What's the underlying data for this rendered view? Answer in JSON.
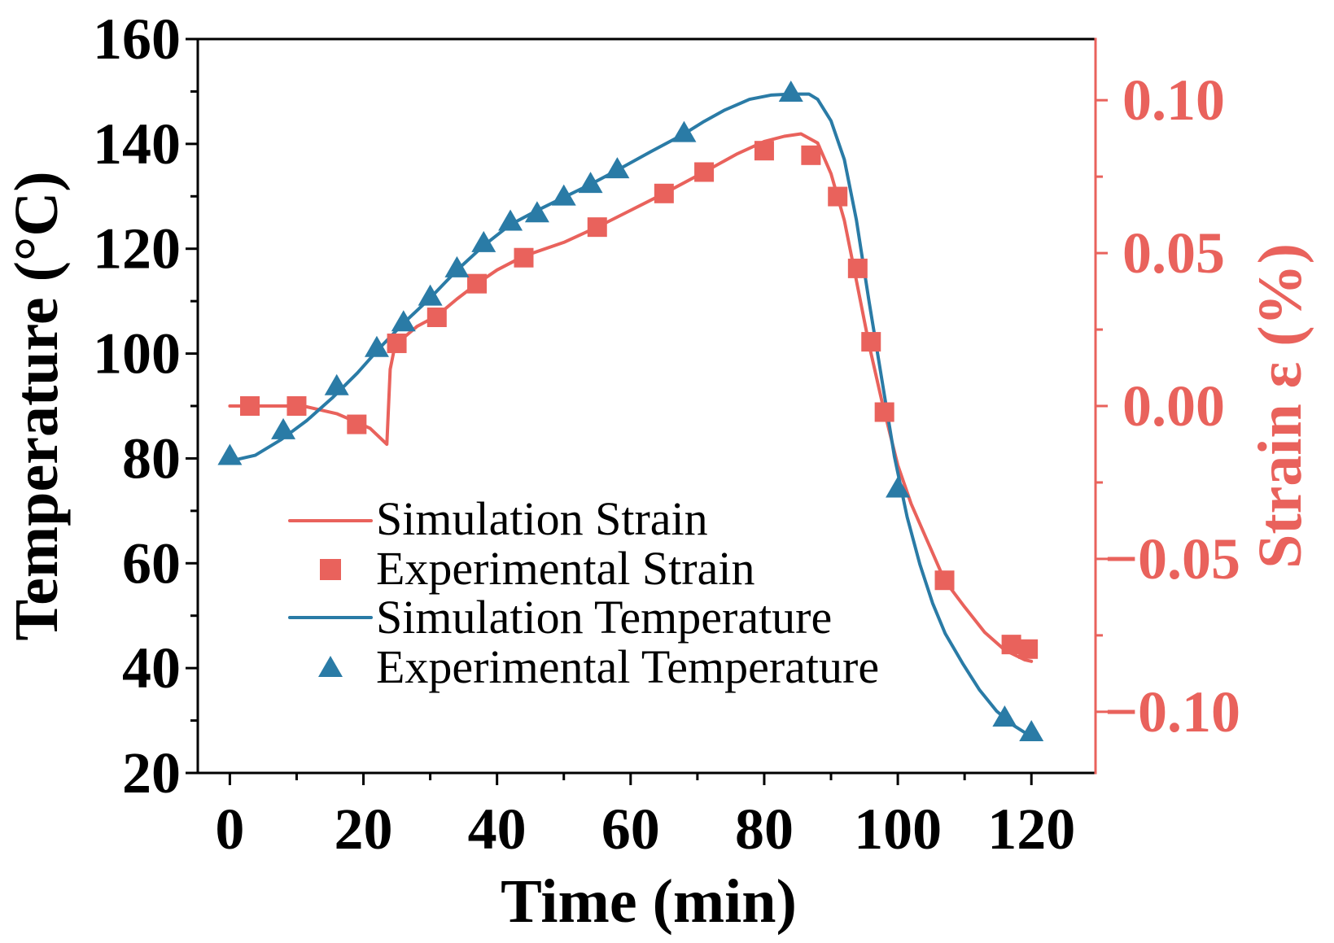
{
  "chart_data": {
    "type": "line",
    "title": "",
    "xlabel": "Time (min)",
    "ylabel": "Temperature (°C)",
    "y2label": "Strain ε (%)",
    "xlim": [
      -4.8,
      129.6
    ],
    "ylim": [
      20,
      160
    ],
    "y2lim": [
      -0.12,
      0.12
    ],
    "xticks": [
      0,
      20,
      40,
      60,
      80,
      100,
      120
    ],
    "xtick_labels": [
      "0",
      "20",
      "40",
      "60",
      "80",
      "100",
      "120"
    ],
    "xminor": [
      10,
      30,
      50,
      70,
      90,
      110
    ],
    "yticks": [
      20,
      40,
      60,
      80,
      100,
      120,
      140,
      160
    ],
    "ytick_labels": [
      "20",
      "40",
      "60",
      "80",
      "100",
      "120",
      "140",
      "160"
    ],
    "yminor": [
      30,
      50,
      70,
      90,
      110,
      130,
      150
    ],
    "y2ticks": [
      -0.1,
      -0.05,
      0.0,
      0.05,
      0.1
    ],
    "y2tick_labels": [
      "−0.10",
      "−0.05",
      "0.00",
      "0.05",
      "0.10"
    ],
    "y2minor": [
      -0.075,
      -0.025,
      0.025,
      0.075
    ],
    "grid": false,
    "legend_position": "center-left",
    "axis_color": "#000000",
    "y2_axis_color": "#E9625C",
    "series": [
      {
        "name": "Simulation Strain",
        "type": "line",
        "yaxis": 2,
        "color": "#E9625C",
        "x": [
          0,
          11,
          13,
          16,
          19,
          21,
          23.5,
          24.0,
          24.6,
          25.3,
          28,
          31,
          34,
          37,
          40,
          44,
          50,
          55,
          60,
          65,
          71,
          76,
          80,
          83,
          85.5,
          88,
          90,
          92,
          93.8,
          95.7,
          97.6,
          100,
          102,
          104,
          107,
          110,
          113,
          116,
          119,
          120
        ],
        "y": [
          0,
          0,
          -0.001,
          -0.0025,
          -0.0053,
          -0.0073,
          -0.0125,
          0.012,
          0.0185,
          0.021,
          0.026,
          0.0295,
          0.035,
          0.04,
          0.0445,
          0.049,
          0.0535,
          0.0585,
          0.064,
          0.0695,
          0.0765,
          0.0825,
          0.0865,
          0.0882,
          0.089,
          0.086,
          0.076,
          0.0607,
          0.041,
          0.02,
          0.0017,
          -0.0194,
          -0.032,
          -0.042,
          -0.057,
          -0.0657,
          -0.074,
          -0.0798,
          -0.083,
          -0.0835
        ]
      },
      {
        "name": "Experimental Strain",
        "type": "scatter",
        "marker": "square",
        "yaxis": 2,
        "color": "#E9625C",
        "x": [
          3,
          10,
          19,
          25,
          31,
          37,
          44,
          55,
          65,
          71,
          80,
          87,
          91,
          94,
          96,
          98,
          107,
          117,
          119.5
        ],
        "y": [
          0.0,
          0.0,
          -0.006,
          0.0205,
          0.029,
          0.04,
          0.0485,
          0.0585,
          0.0695,
          0.0765,
          0.0835,
          0.082,
          0.0685,
          0.045,
          0.021,
          -0.002,
          -0.057,
          -0.078,
          -0.0795
        ]
      },
      {
        "name": "Simulation Temperature",
        "type": "line",
        "yaxis": 1,
        "color": "#2A7BA6",
        "x": [
          0,
          3.8,
          7.7,
          11.5,
          15.3,
          19.1,
          22.3,
          26,
          30,
          34,
          38,
          42,
          46,
          50,
          54,
          58,
          63,
          68,
          71,
          74,
          77.8,
          81,
          84,
          86.7,
          88,
          90,
          92,
          93.8,
          95.7,
          97.6,
          99.5,
          101.4,
          103.3,
          105.2,
          107.1,
          109.7,
          112.2,
          114.8,
          117.3,
          120
        ],
        "y": [
          79.5,
          80.6,
          83.6,
          87.2,
          91.5,
          96.3,
          100.9,
          105.8,
          110.6,
          115.9,
          120.6,
          124.6,
          127.3,
          129.8,
          132.3,
          135.0,
          138.5,
          141.9,
          144.3,
          146.4,
          148.5,
          149.3,
          149.5,
          149.5,
          148.5,
          144.4,
          137.0,
          125.5,
          109.9,
          95.1,
          80.3,
          68.8,
          59.8,
          52.4,
          46.6,
          40.9,
          35.9,
          31.8,
          29.1,
          26.9
        ]
      },
      {
        "name": "Experimental Temperature",
        "type": "scatter",
        "marker": "triangle",
        "yaxis": 1,
        "color": "#2A7BA6",
        "x": [
          0,
          8,
          16,
          22,
          26,
          30,
          34,
          38,
          42,
          46,
          50,
          54,
          58,
          68,
          84,
          100,
          116,
          120
        ],
        "y": [
          80.3,
          85.2,
          93.6,
          100.9,
          105.8,
          110.7,
          116.1,
          120.9,
          125.0,
          126.6,
          129.8,
          132.2,
          135.0,
          141.9,
          149.6,
          74.1,
          30.4,
          27.6
        ]
      }
    ]
  }
}
